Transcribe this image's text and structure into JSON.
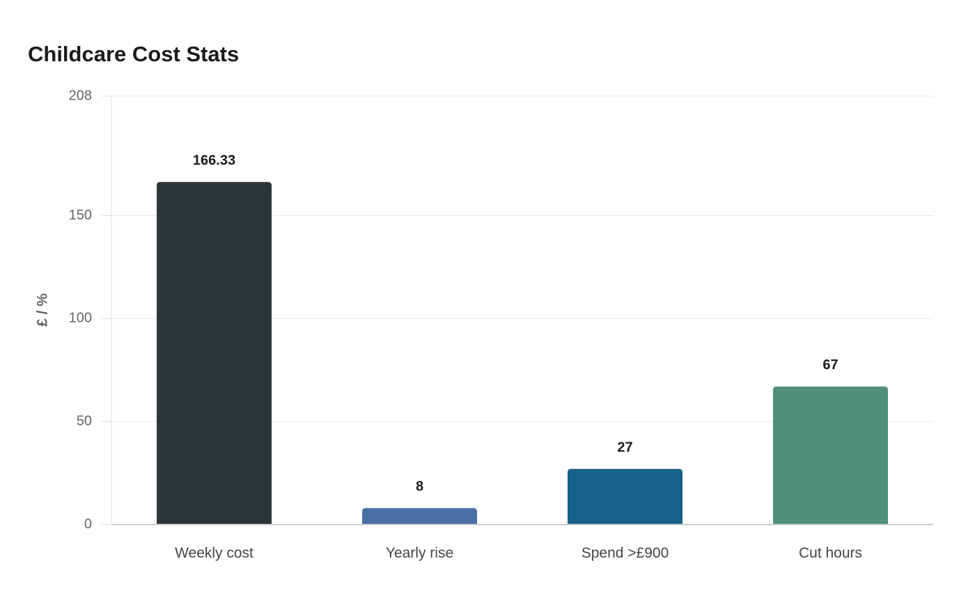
{
  "chart_data": {
    "type": "bar",
    "title": "Childcare Cost Stats",
    "y_label": "£ / %",
    "categories": [
      "Weekly cost",
      "Yearly rise",
      "Spend >£900",
      "Cut hours"
    ],
    "values": [
      166.33,
      8,
      27,
      67
    ],
    "colors": [
      "#2e3538",
      "#4a6fa5",
      "#166289",
      "#4f8f7c"
    ],
    "ylim": [
      0,
      208
    ],
    "yticks": [
      0,
      50,
      100,
      150,
      208
    ],
    "grid": true
  }
}
